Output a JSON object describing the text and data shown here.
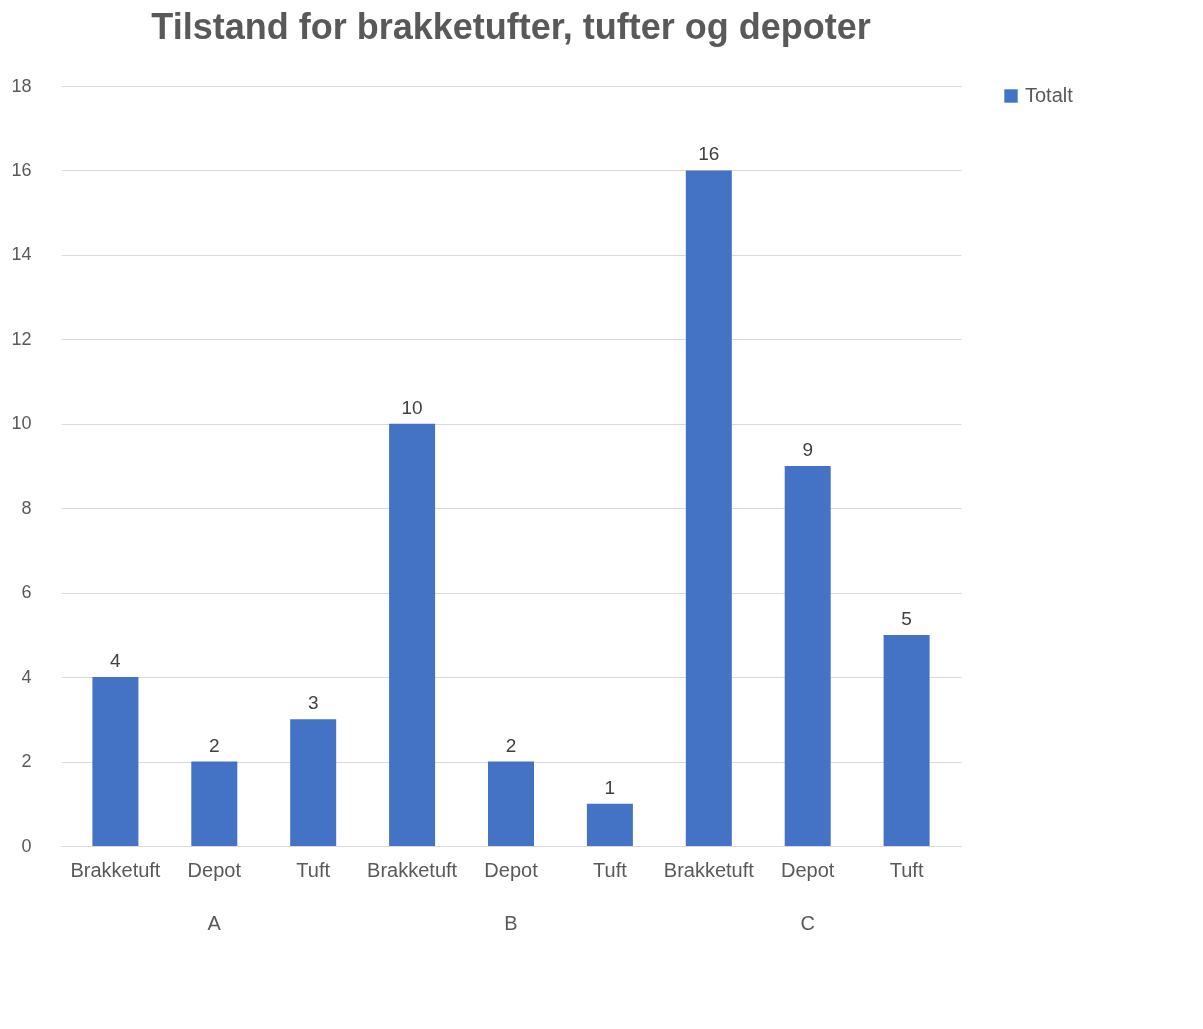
{
  "chart_data": {
    "type": "bar",
    "title": "Tilstand for brakketufter, tufter og depoter",
    "categories": [
      "Brakketuft",
      "Depot",
      "Tuft",
      "Brakketuft",
      "Depot",
      "Tuft",
      "Brakketuft",
      "Depot",
      "Tuft"
    ],
    "series": [
      {
        "name": "Totalt",
        "color": "#4472c4",
        "values": [
          4,
          2,
          3,
          10,
          2,
          1,
          16,
          9,
          5
        ]
      }
    ],
    "annotations": [
      "A",
      "B",
      "C"
    ],
    "ylim": [
      0,
      18
    ],
    "yticks": [
      0,
      2,
      4,
      6,
      8,
      10,
      12,
      14,
      16,
      18
    ],
    "grid": "y",
    "legend": "right",
    "data_labels": true
  }
}
